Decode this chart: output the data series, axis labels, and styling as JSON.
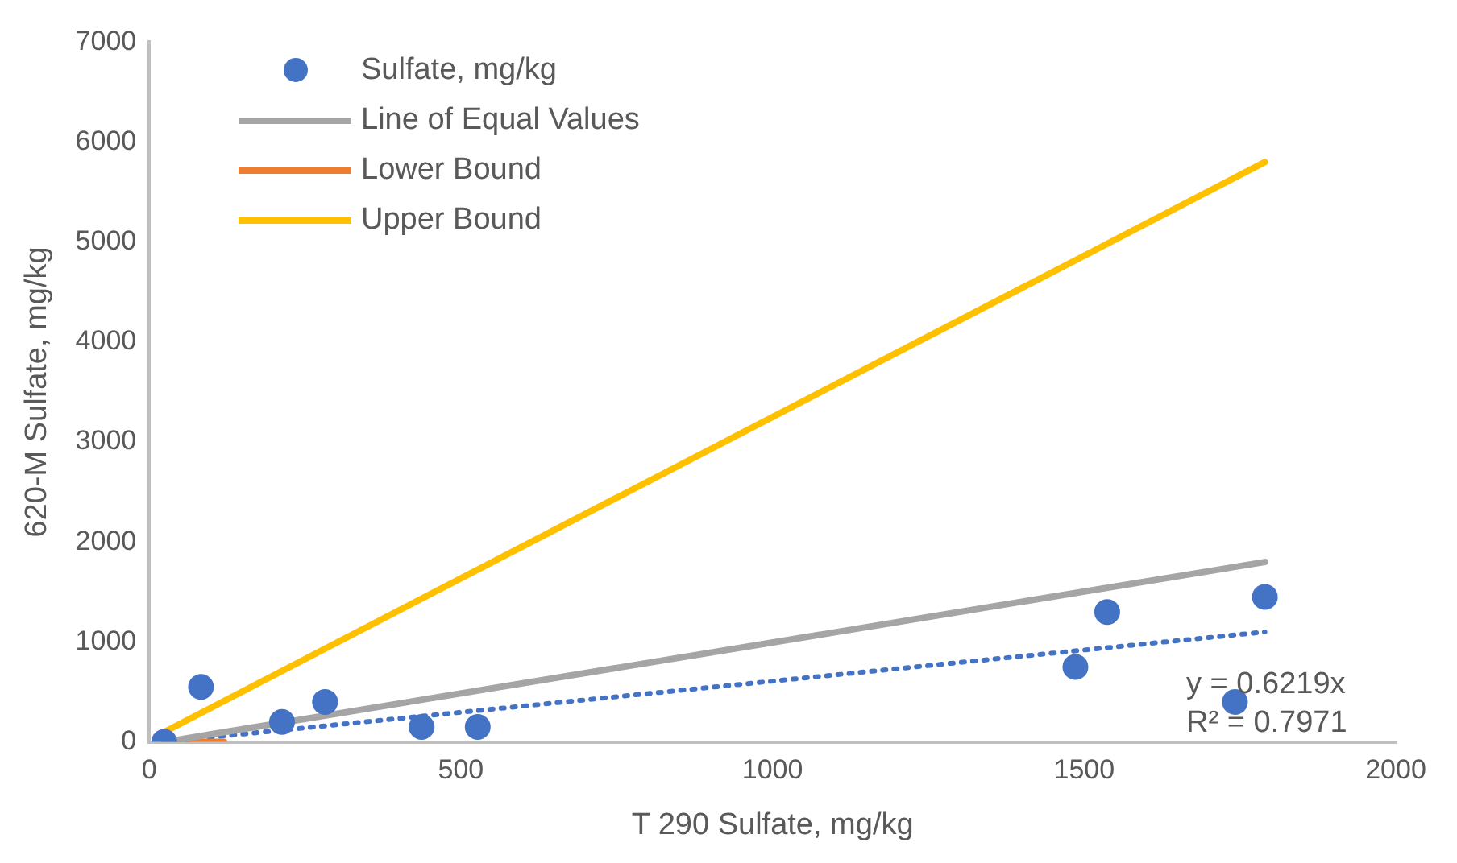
{
  "chart_data": {
    "type": "scatter",
    "xlabel": "T 290 Sulfate, mg/kg",
    "ylabel": "620-M Sulfate, mg/kg",
    "xlim": [
      0,
      2000
    ],
    "xticks": [
      0,
      500,
      1000,
      1500,
      2000
    ],
    "ylim": [
      0,
      7000
    ],
    "yticks": [
      0,
      1000,
      2000,
      3000,
      4000,
      5000,
      6000,
      7000
    ],
    "grid": false,
    "legend": "top left",
    "series": [
      {
        "name": "Sulfate, mg/kg",
        "type": "scatter",
        "marker": "circle",
        "color": "#4472c4",
        "x": [
          24,
          83,
          213,
          282,
          437,
          527,
          1486,
          1537,
          1742,
          1790
        ],
        "values": [
          0,
          550,
          200,
          400,
          150,
          150,
          750,
          1300,
          400,
          1450
        ]
      },
      {
        "name": "Line of Equal Values",
        "type": "line",
        "marker": "none",
        "line_style": "solid",
        "color": "#a5a5a5",
        "x": [
          24,
          1790
        ],
        "values": [
          0,
          1800
        ]
      },
      {
        "name": "Lower Bound",
        "type": "line",
        "marker": "none",
        "line_style": "solid",
        "color": "#ed7d31",
        "x": [
          24,
          120
        ],
        "values": [
          0,
          0
        ]
      },
      {
        "name": "Upper Bound",
        "type": "line",
        "marker": "none",
        "line_style": "solid",
        "color": "#ffc000",
        "x": [
          24,
          1790
        ],
        "values": [
          100,
          5800
        ]
      },
      {
        "type": "line",
        "marker": "none",
        "line_style": "dotted",
        "color": "#4472c4",
        "x": [
          24,
          1790
        ],
        "values": [
          0,
          1100
        ]
      }
    ],
    "annotations": [
      "y = 0.6219x",
      "R² = 0.7971"
    ]
  }
}
